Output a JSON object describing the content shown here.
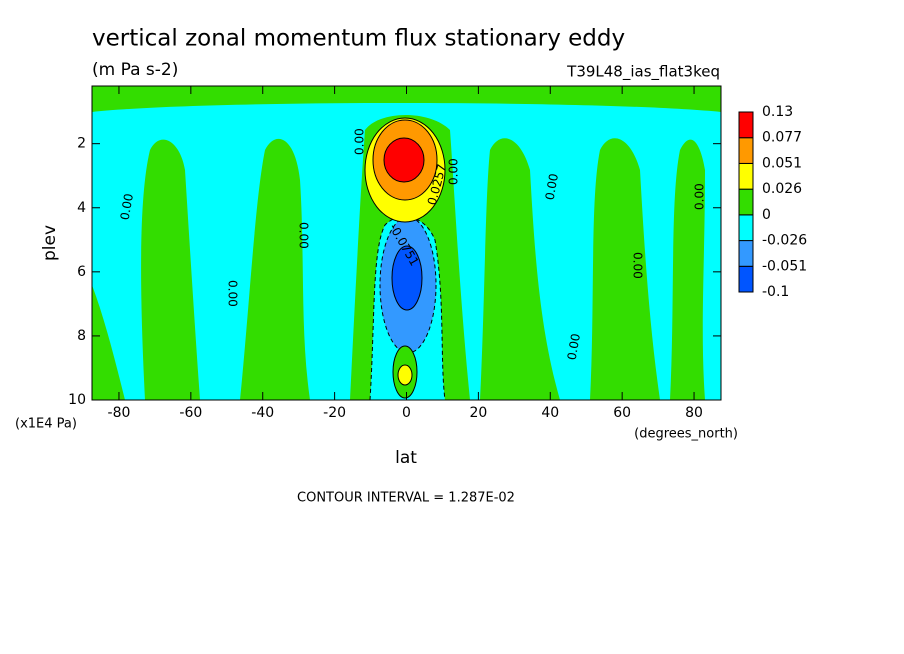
{
  "chart_data": {
    "type": "contour",
    "title": "vertical zonal momentum flux stationary eddy",
    "subtitle": "(m Pa s-2)",
    "dataset": "T39L48_ias_flat3keq",
    "x_label": "lat",
    "x_units": "(degrees_north)",
    "y_label": "plev",
    "y_units": "(x1E4 Pa)",
    "footer": "CONTOUR INTERVAL = 1.287E-02",
    "xlim": [
      -87.5,
      87.5
    ],
    "xticks": [
      -80,
      -60,
      -40,
      -20,
      0,
      20,
      40,
      60,
      80
    ],
    "ylim": [
      10,
      0.2
    ],
    "yticks": [
      2,
      4,
      6,
      8,
      10
    ],
    "levels": [
      -0.1,
      -0.051,
      -0.026,
      0,
      0.026,
      0.051,
      0.077,
      0.13
    ],
    "colors": [
      "#0055ff",
      "#3399ff",
      "#00ffff",
      "#33dd00",
      "#ffff00",
      "#ff9900",
      "#ff0000"
    ],
    "contour_labels": [
      "0.00",
      "0.0257",
      "-0.0751"
    ]
  }
}
